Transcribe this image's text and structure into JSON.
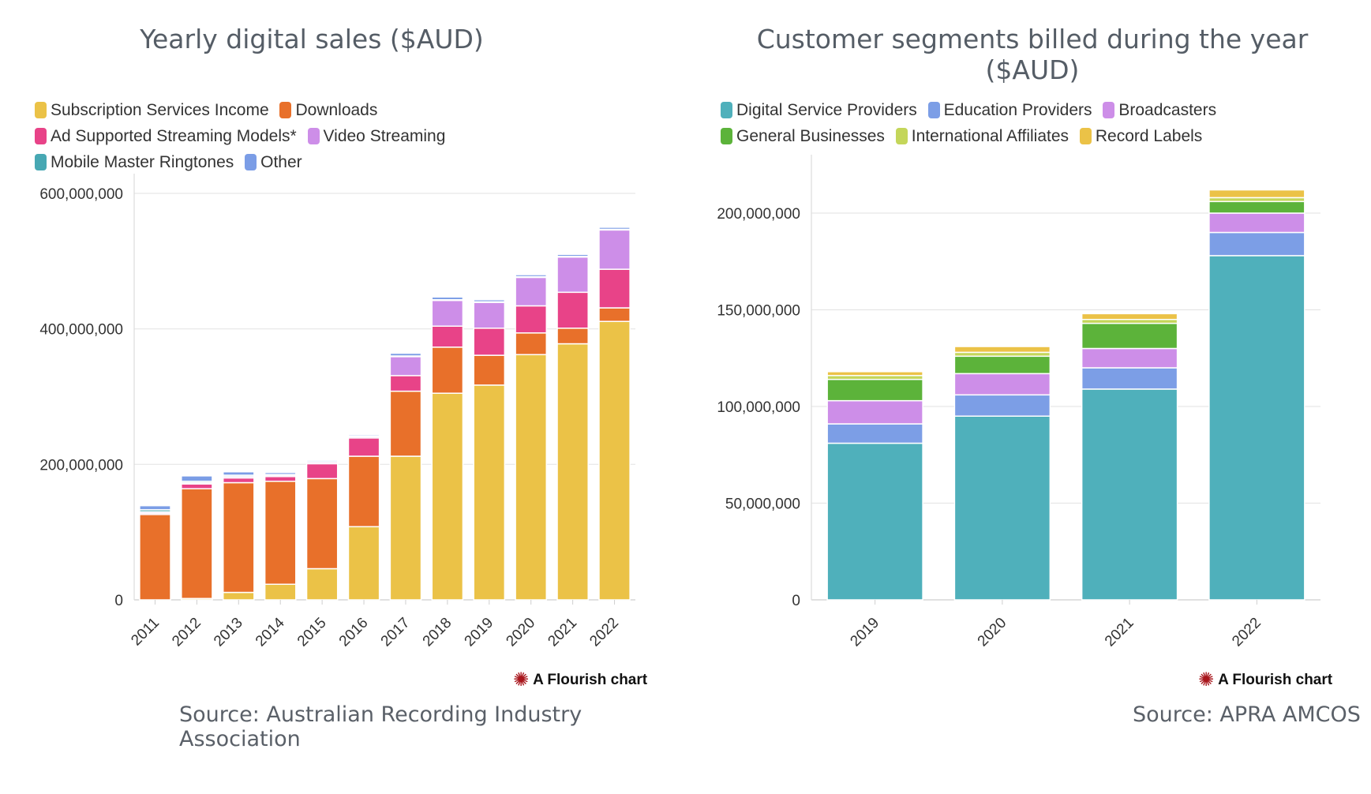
{
  "left": {
    "title": "Yearly digital sales ($AUD)",
    "source": "Source: Australian Recording Industry Association",
    "credit": "A Flourish chart",
    "chart_data": {
      "type": "bar",
      "stacked": true,
      "title": "Yearly digital sales ($AUD)",
      "categories": [
        "2011",
        "2012",
        "2013",
        "2014",
        "2015",
        "2016",
        "2017",
        "2018",
        "2019",
        "2020",
        "2021",
        "2022"
      ],
      "ylim": [
        0,
        600000000
      ],
      "yticks": [
        0,
        200000000,
        400000000,
        600000000
      ],
      "ytick_labels": [
        "0",
        "200,000,000",
        "400,000,000",
        "600,000,000"
      ],
      "grid": true,
      "legend_position": "top",
      "series": [
        {
          "name": "Subscription Services Income",
          "color": "#ebc247",
          "values": [
            0,
            2000000,
            11000000,
            23000000,
            46000000,
            108000000,
            212000000,
            305000000,
            317000000,
            362000000,
            378000000,
            411000000
          ]
        },
        {
          "name": "Downloads",
          "color": "#e8702a",
          "values": [
            126000000,
            162000000,
            162000000,
            152000000,
            133000000,
            104000000,
            96000000,
            68000000,
            44000000,
            32000000,
            23000000,
            20000000
          ]
        },
        {
          "name": "Ad Supported Streaming Models*",
          "color": "#e84388",
          "values": [
            2000000,
            7000000,
            7000000,
            7000000,
            22000000,
            27000000,
            23000000,
            31000000,
            40000000,
            40000000,
            53000000,
            57000000
          ]
        },
        {
          "name": "Video Streaming",
          "color": "#cd8ee8",
          "values": [
            2000000,
            2000000,
            2000000,
            2000000,
            2000000,
            2000000,
            28000000,
            38000000,
            38000000,
            42000000,
            52000000,
            58000000
          ]
        },
        {
          "name": "Mobile Master Ringtones",
          "color": "#47a8b3",
          "values": [
            3000000,
            2000000,
            2000000,
            1000000,
            1000000,
            1000000,
            1000000,
            1000000,
            1000000,
            1000000,
            1000000,
            1000000
          ]
        },
        {
          "name": "Other",
          "color": "#7b9de6",
          "values": [
            6000000,
            8000000,
            5000000,
            3000000,
            2000000,
            2000000,
            4000000,
            4000000,
            3000000,
            3000000,
            3000000,
            3000000
          ]
        }
      ]
    }
  },
  "right": {
    "title": "Customer segments billed during the year ($AUD)",
    "source": "Source: APRA AMCOS",
    "credit": "A Flourish chart",
    "chart_data": {
      "type": "bar",
      "stacked": true,
      "title": "Customer segments billed during the year ($AUD)",
      "categories": [
        "2019",
        "2020",
        "2021",
        "2022"
      ],
      "ylim": [
        0,
        220000000
      ],
      "yticks": [
        0,
        50000000,
        100000000,
        150000000,
        200000000
      ],
      "ytick_labels": [
        "0",
        "50,000,000",
        "100,000,000",
        "150,000,000",
        "200,000,000"
      ],
      "grid": true,
      "legend_position": "top",
      "series": [
        {
          "name": "Digital Service Providers",
          "color": "#4fb0bb",
          "values": [
            81000000,
            95000000,
            109000000,
            178000000
          ]
        },
        {
          "name": "Education Providers",
          "color": "#7c9ee6",
          "values": [
            10000000,
            11000000,
            11000000,
            12000000
          ]
        },
        {
          "name": "Broadcasters",
          "color": "#cd8ee8",
          "values": [
            12000000,
            11000000,
            10000000,
            10000000
          ]
        },
        {
          "name": "General Businesses",
          "color": "#5cb33a",
          "values": [
            11000000,
            9000000,
            13000000,
            6000000
          ]
        },
        {
          "name": "International Affiliates",
          "color": "#c4d65a",
          "values": [
            2000000,
            2000000,
            2000000,
            2000000
          ]
        },
        {
          "name": "Record Labels",
          "color": "#ebc247",
          "values": [
            2000000,
            3000000,
            3000000,
            4000000
          ]
        }
      ]
    }
  }
}
